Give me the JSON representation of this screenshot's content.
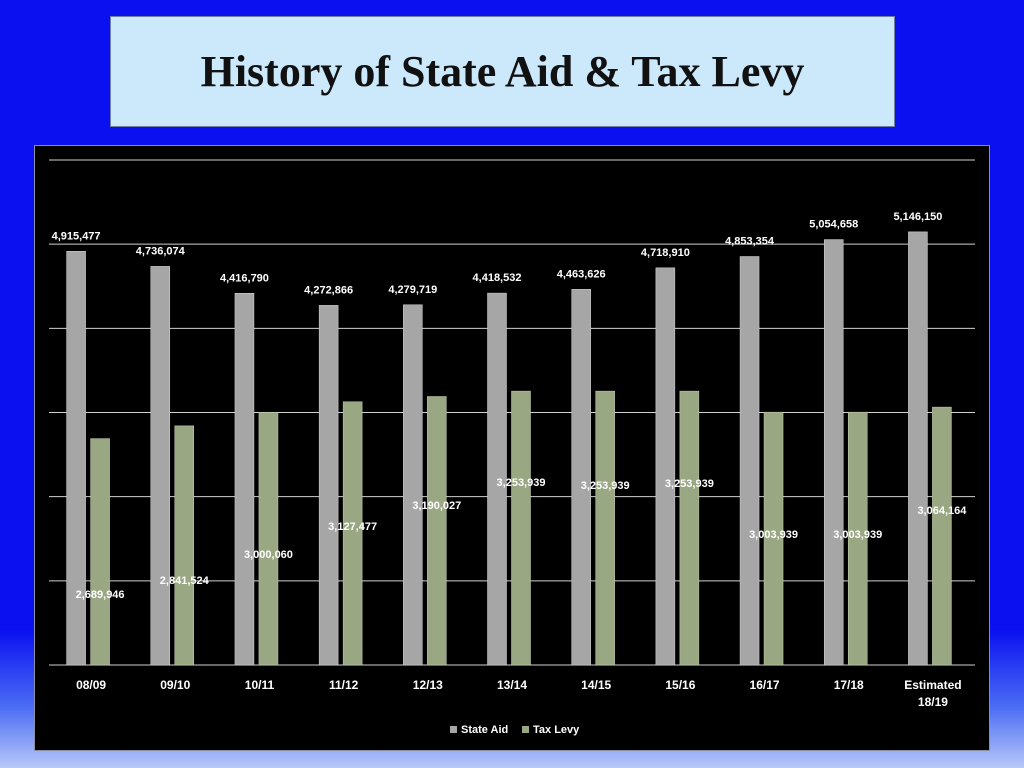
{
  "slide": {
    "title": "History of State Aid & Tax Levy"
  },
  "chart_data": {
    "type": "bar",
    "title": "",
    "xlabel": "",
    "ylabel": "",
    "ylim": [
      0,
      6000000
    ],
    "grid": true,
    "legend_position": "bottom",
    "categories": [
      "08/09",
      "09/10",
      "10/11",
      "11/12",
      "12/13",
      "13/14",
      "14/15",
      "15/16",
      "16/17",
      "17/18",
      "Estimated 18/19"
    ],
    "series": [
      {
        "name": "State Aid",
        "color": "#a6a6a6",
        "values": [
          4915477,
          4736074,
          4416790,
          4272866,
          4279719,
          4418532,
          4463626,
          4718910,
          4853354,
          5054658,
          5146150
        ],
        "labels": [
          "4,915,477",
          "4,736,074",
          "4,416,790",
          "4,272,866",
          "4,279,719",
          "4,418,532",
          "4,463,626",
          "4,718,910",
          "4,853,354",
          "5,054,658",
          "5,146,150"
        ]
      },
      {
        "name": "Tax Levy",
        "color": "#9aa783",
        "values": [
          2689946,
          2841524,
          3000060,
          3127477,
          3190027,
          3253939,
          3253939,
          3253939,
          3003939,
          3003939,
          3064164
        ],
        "labels": [
          "2,689,946",
          "2,841,524",
          "3,000,060",
          "3,127,477",
          "3,190,027",
          "3,253,939",
          "3,253,939",
          "3,253,939",
          "3,003,939",
          "3,003,939",
          "3,064,164"
        ]
      }
    ]
  }
}
